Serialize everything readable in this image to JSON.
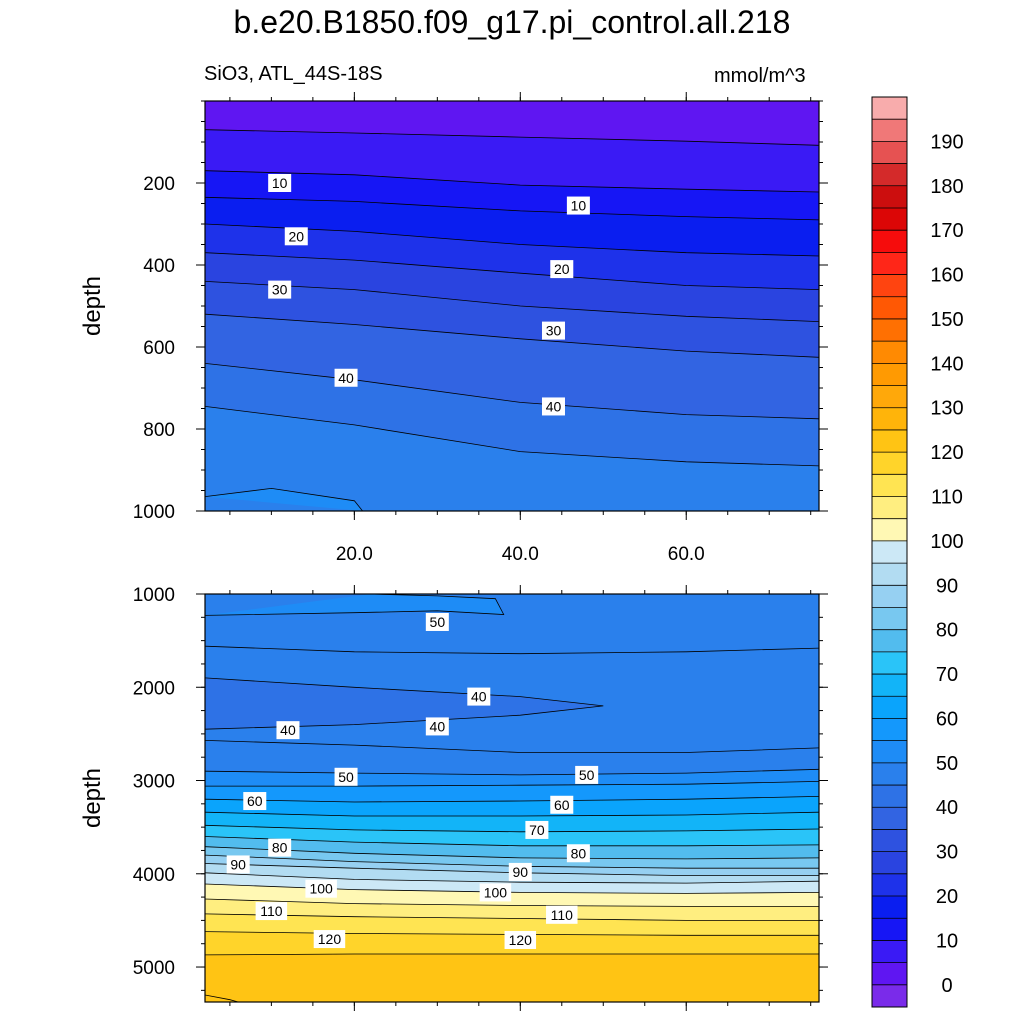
{
  "header": {
    "title": "b.e20.B1850.f09_g17.pi_control.all.218",
    "subtitle_left": "SiO3, ATL_44S-18S",
    "subtitle_right": "mmol/m^3"
  },
  "chart_data": [
    {
      "type": "contour",
      "panel": "upper",
      "ylabel": "depth",
      "xlabel": "",
      "xlim": [
        2,
        76
      ],
      "ylim": [
        1000,
        0
      ],
      "xticks": [
        20,
        40,
        60
      ],
      "xtick_labels": [
        "20.0",
        "40.0",
        "60.0"
      ],
      "yticks": [
        200,
        400,
        600,
        800,
        1000
      ],
      "ytick_labels": [
        "200",
        "400",
        "600",
        "800",
        "1000"
      ],
      "contour_interval": 5,
      "contours": [
        {
          "level": 5,
          "points": [
            [
              2,
              70
            ],
            [
              20,
              78
            ],
            [
              40,
              88
            ],
            [
              60,
              98
            ],
            [
              76,
              108
            ]
          ]
        },
        {
          "level": 10,
          "points": [
            [
              2,
              170
            ],
            [
              20,
              180
            ],
            [
              40,
              205
            ],
            [
              60,
              215
            ],
            [
              76,
              222
            ]
          ]
        },
        {
          "level": 15,
          "points": [
            [
              2,
              235
            ],
            [
              20,
              245
            ],
            [
              40,
              268
            ],
            [
              60,
              282
            ],
            [
              76,
              290
            ]
          ]
        },
        {
          "level": 20,
          "points": [
            [
              2,
              300
            ],
            [
              20,
              318
            ],
            [
              40,
              350
            ],
            [
              60,
              370
            ],
            [
              76,
              378
            ]
          ]
        },
        {
          "level": 25,
          "points": [
            [
              2,
              370
            ],
            [
              20,
              388
            ],
            [
              40,
              420
            ],
            [
              60,
              450
            ],
            [
              76,
              460
            ]
          ]
        },
        {
          "level": 30,
          "points": [
            [
              2,
              440
            ],
            [
              20,
              460
            ],
            [
              40,
              500
            ],
            [
              60,
              525
            ],
            [
              76,
              538
            ]
          ]
        },
        {
          "level": 35,
          "points": [
            [
              2,
              520
            ],
            [
              20,
              545
            ],
            [
              40,
              580
            ],
            [
              60,
              610
            ],
            [
              76,
              625
            ]
          ]
        },
        {
          "level": 40,
          "points": [
            [
              2,
              640
            ],
            [
              20,
              680
            ],
            [
              40,
              735
            ],
            [
              60,
              765
            ],
            [
              76,
              775
            ]
          ]
        },
        {
          "level": 45,
          "points": [
            [
              2,
              745
            ],
            [
              20,
              790
            ],
            [
              40,
              855
            ],
            [
              60,
              880
            ],
            [
              76,
              890
            ]
          ]
        },
        {
          "level": 50,
          "points": [
            [
              2,
              965
            ],
            [
              10,
              945
            ],
            [
              20,
              975
            ],
            [
              21,
              1000
            ]
          ]
        }
      ],
      "labels": [
        {
          "text": "10",
          "x": 11,
          "y": 200
        },
        {
          "text": "10",
          "x": 47,
          "y": 255
        },
        {
          "text": "20",
          "x": 13,
          "y": 330
        },
        {
          "text": "20",
          "x": 45,
          "y": 410
        },
        {
          "text": "30",
          "x": 11,
          "y": 460
        },
        {
          "text": "30",
          "x": 44,
          "y": 560
        },
        {
          "text": "40",
          "x": 19,
          "y": 675
        },
        {
          "text": "40",
          "x": 44,
          "y": 745
        }
      ]
    },
    {
      "type": "contour",
      "panel": "lower",
      "ylabel": "depth",
      "xlabel": "",
      "xlim": [
        2,
        76
      ],
      "ylim": [
        5375,
        1000
      ],
      "yticks": [
        1000,
        2000,
        3000,
        4000,
        5000
      ],
      "ytick_labels": [
        "1000",
        "2000",
        "3000",
        "4000",
        "5000"
      ],
      "contour_interval": 5,
      "contours": [
        {
          "level": 50,
          "points": [
            [
              22,
              1000
            ],
            [
              30,
              1020
            ],
            [
              37,
              1050
            ],
            [
              38,
              1220
            ],
            [
              30,
              1180
            ],
            [
              20,
              1200
            ],
            [
              2,
              1230
            ]
          ]
        },
        {
          "level": 45,
          "points": [
            [
              2,
              1560
            ],
            [
              20,
              1620
            ],
            [
              40,
              1640
            ],
            [
              60,
              1620
            ],
            [
              76,
              1580
            ]
          ]
        },
        {
          "level": 40,
          "points": [
            [
              2,
              1900
            ],
            [
              20,
              2000
            ],
            [
              40,
              2100
            ],
            [
              50,
              2200
            ],
            [
              40,
              2300
            ],
            [
              20,
              2400
            ],
            [
              2,
              2450
            ]
          ]
        },
        {
          "level": 45,
          "points": [
            [
              2,
              2570
            ],
            [
              20,
              2620
            ],
            [
              40,
              2700
            ],
            [
              60,
              2700
            ],
            [
              76,
              2650
            ]
          ]
        },
        {
          "level": 50,
          "points": [
            [
              2,
              2900
            ],
            [
              20,
              2920
            ],
            [
              40,
              2940
            ],
            [
              60,
              2920
            ],
            [
              76,
              2880
            ]
          ]
        },
        {
          "level": 55,
          "points": [
            [
              2,
              3060
            ],
            [
              20,
              3060
            ],
            [
              40,
              3050
            ],
            [
              60,
              3040
            ],
            [
              76,
              3010
            ]
          ]
        },
        {
          "level": 60,
          "points": [
            [
              2,
              3200
            ],
            [
              20,
              3230
            ],
            [
              40,
              3220
            ],
            [
              60,
              3200
            ],
            [
              76,
              3170
            ]
          ]
        },
        {
          "level": 65,
          "points": [
            [
              2,
              3340
            ],
            [
              20,
              3380
            ],
            [
              40,
              3380
            ],
            [
              60,
              3370
            ],
            [
              76,
              3340
            ]
          ]
        },
        {
          "level": 70,
          "points": [
            [
              2,
              3480
            ],
            [
              20,
              3530
            ],
            [
              40,
              3550
            ],
            [
              60,
              3540
            ],
            [
              76,
              3520
            ]
          ]
        },
        {
          "level": 75,
          "points": [
            [
              2,
              3600
            ],
            [
              20,
              3660
            ],
            [
              40,
              3700
            ],
            [
              60,
              3700
            ],
            [
              76,
              3690
            ]
          ]
        },
        {
          "level": 80,
          "points": [
            [
              2,
              3710
            ],
            [
              20,
              3780
            ],
            [
              40,
              3830
            ],
            [
              60,
              3840
            ],
            [
              76,
              3830
            ]
          ]
        },
        {
          "level": 85,
          "points": [
            [
              2,
              3800
            ],
            [
              20,
              3870
            ],
            [
              40,
              3920
            ],
            [
              60,
              3940
            ],
            [
              76,
              3940
            ]
          ]
        },
        {
          "level": 90,
          "points": [
            [
              2,
              3890
            ],
            [
              20,
              3940
            ],
            [
              40,
              3990
            ],
            [
              60,
              4020
            ],
            [
              76,
              4020
            ]
          ]
        },
        {
          "level": 95,
          "points": [
            [
              2,
              3990
            ],
            [
              20,
              4060
            ],
            [
              40,
              4090
            ],
            [
              60,
              4100
            ],
            [
              76,
              4080
            ]
          ]
        },
        {
          "level": 100,
          "points": [
            [
              2,
              4110
            ],
            [
              20,
              4170
            ],
            [
              40,
              4200
            ],
            [
              60,
              4210
            ],
            [
              76,
              4200
            ]
          ]
        },
        {
          "level": 105,
          "points": [
            [
              2,
              4270
            ],
            [
              20,
              4320
            ],
            [
              40,
              4340
            ],
            [
              60,
              4350
            ],
            [
              76,
              4350
            ]
          ]
        },
        {
          "level": 110,
          "points": [
            [
              2,
              4430
            ],
            [
              20,
              4460
            ],
            [
              40,
              4480
            ],
            [
              60,
              4500
            ],
            [
              76,
              4500
            ]
          ]
        },
        {
          "level": 115,
          "points": [
            [
              2,
              4620
            ],
            [
              20,
              4640
            ],
            [
              40,
              4650
            ],
            [
              60,
              4660
            ],
            [
              76,
              4660
            ]
          ]
        },
        {
          "level": 120,
          "points": [
            [
              2,
              4870
            ],
            [
              20,
              4860
            ],
            [
              40,
              4860
            ],
            [
              60,
              4860
            ],
            [
              76,
              4860
            ]
          ]
        },
        {
          "level": 125,
          "points": [
            [
              2,
              5300
            ],
            [
              5,
              5350
            ],
            [
              6,
              5375
            ]
          ]
        }
      ],
      "labels": [
        {
          "text": "50",
          "x": 30,
          "y": 1300
        },
        {
          "text": "40",
          "x": 35,
          "y": 2100
        },
        {
          "text": "40",
          "x": 12,
          "y": 2460
        },
        {
          "text": "40",
          "x": 30,
          "y": 2420
        },
        {
          "text": "50",
          "x": 19,
          "y": 2960
        },
        {
          "text": "50",
          "x": 48,
          "y": 2940
        },
        {
          "text": "60",
          "x": 8,
          "y": 3220
        },
        {
          "text": "60",
          "x": 45,
          "y": 3260
        },
        {
          "text": "70",
          "x": 42,
          "y": 3530
        },
        {
          "text": "80",
          "x": 11,
          "y": 3720
        },
        {
          "text": "80",
          "x": 47,
          "y": 3780
        },
        {
          "text": "90",
          "x": 6,
          "y": 3900
        },
        {
          "text": "90",
          "x": 40,
          "y": 3980
        },
        {
          "text": "100",
          "x": 16,
          "y": 4160
        },
        {
          "text": "100",
          "x": 37,
          "y": 4200
        },
        {
          "text": "110",
          "x": 10,
          "y": 4400
        },
        {
          "text": "110",
          "x": 45,
          "y": 4440
        },
        {
          "text": "120",
          "x": 17,
          "y": 4700
        },
        {
          "text": "120",
          "x": 40,
          "y": 4710
        }
      ]
    }
  ],
  "colorbar": {
    "levels": [
      -5,
      0,
      5,
      10,
      15,
      20,
      25,
      30,
      35,
      40,
      45,
      50,
      55,
      60,
      65,
      70,
      75,
      80,
      85,
      90,
      95,
      100,
      105,
      110,
      115,
      120,
      125,
      130,
      135,
      140,
      145,
      150,
      155,
      160,
      165,
      170,
      175,
      180,
      185,
      190,
      195
    ],
    "colors": [
      "#7a2bea",
      "#5f16f2",
      "#3a1af5",
      "#1616f5",
      "#0a1ef0",
      "#1e32ea",
      "#2a44e0",
      "#2e52e0",
      "#3264e2",
      "#2e72e6",
      "#2a80ec",
      "#1e8cf6",
      "#1498fc",
      "#0aa4fc",
      "#12b4f8",
      "#2ac4f8",
      "#52bcee",
      "#78c8f0",
      "#96d0f2",
      "#b2dcf2",
      "#cce8f6",
      "#fff8b4",
      "#ffee80",
      "#ffe452",
      "#ffd42a",
      "#ffc414",
      "#ffb40a",
      "#ffa80a",
      "#ff9a02",
      "#ff8a02",
      "#ff7002",
      "#ff5804",
      "#ff4410",
      "#ff2618",
      "#f60c0c",
      "#dc0606",
      "#cc0e0e",
      "#d42a2a",
      "#e65252",
      "#f07878",
      "#f8acac"
    ],
    "tick_labels": [
      "0",
      "10",
      "20",
      "30",
      "40",
      "50",
      "60",
      "70",
      "80",
      "90",
      "100",
      "110",
      "120",
      "130",
      "140",
      "150",
      "160",
      "170",
      "180",
      "190"
    ]
  }
}
